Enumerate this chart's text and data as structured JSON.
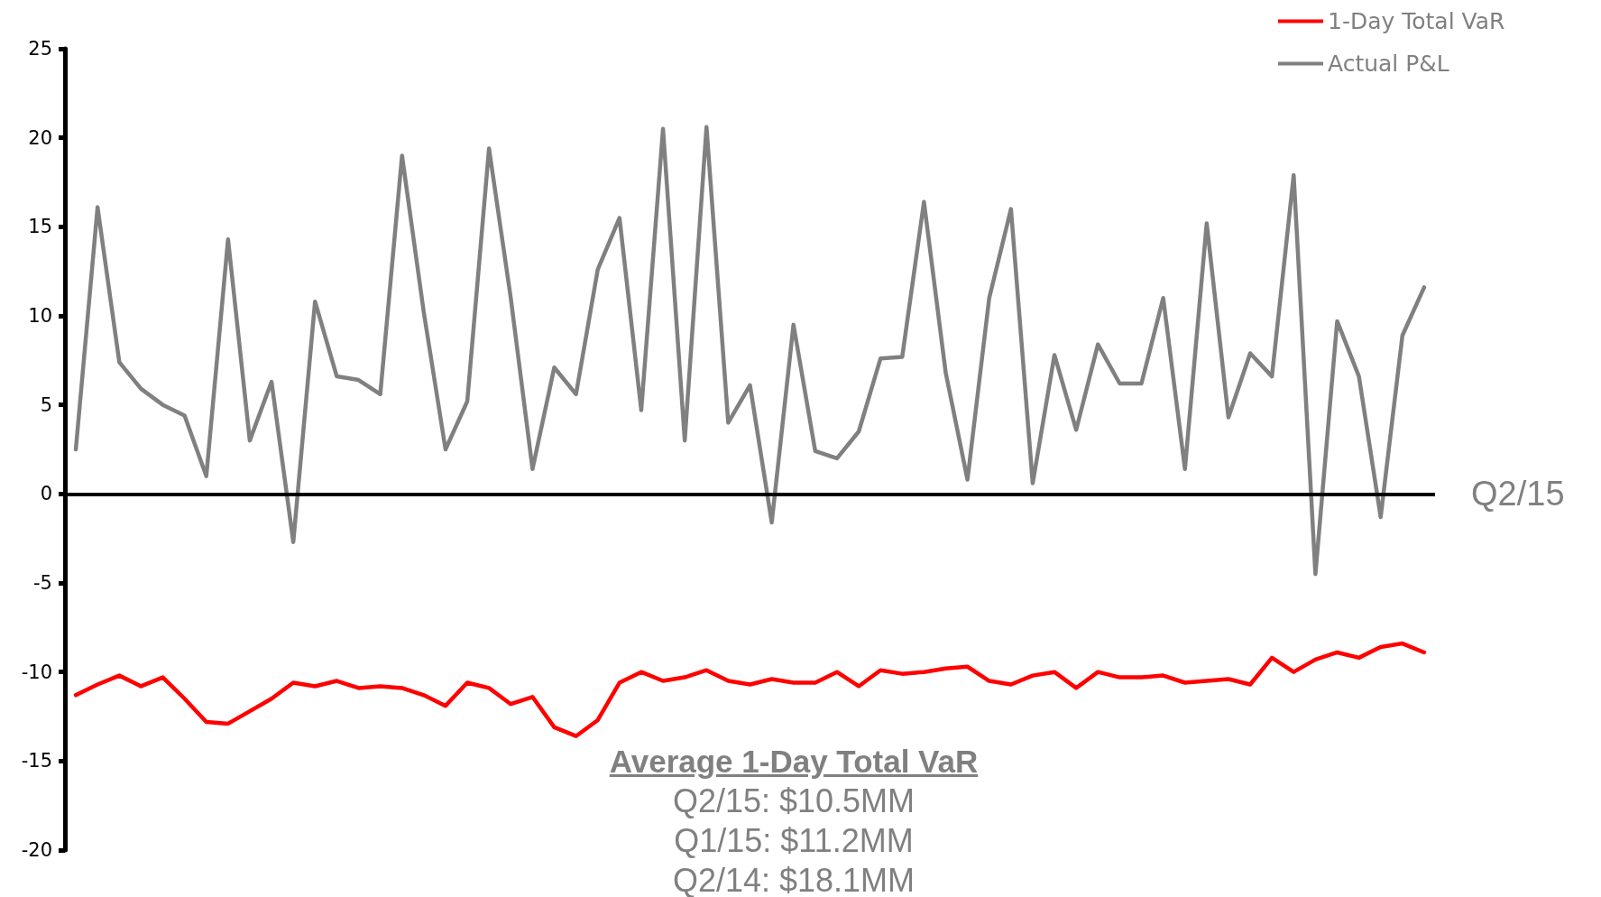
{
  "chart_data": {
    "type": "line",
    "categories": [
      null,
      null,
      null,
      null,
      null,
      null,
      null,
      null,
      null,
      null,
      null,
      null,
      null,
      null,
      null,
      null,
      null,
      null,
      null,
      null,
      null,
      null,
      null,
      null,
      null,
      null,
      null,
      null,
      null,
      null,
      null,
      null,
      null,
      null,
      null,
      null,
      null,
      null,
      null,
      null,
      null,
      null,
      null,
      null,
      null,
      null,
      null,
      null,
      null,
      null,
      null,
      null,
      null,
      null,
      null,
      null,
      null,
      null,
      null,
      null,
      null,
      null,
      null
    ],
    "series": [
      {
        "name": "1-Day Total VaR",
        "color": "#ff0000",
        "values": [
          -11.3,
          -10.7,
          -10.2,
          -10.8,
          -10.3,
          -11.5,
          -12.8,
          -12.9,
          -12.2,
          -11.5,
          -10.6,
          -10.8,
          -10.5,
          -10.9,
          -10.8,
          -10.9,
          -11.3,
          -11.9,
          -10.6,
          -10.9,
          -11.8,
          -11.4,
          -13.1,
          -13.6,
          -12.7,
          -10.6,
          -10.0,
          -10.5,
          -10.3,
          -9.9,
          -10.5,
          -10.7,
          -10.4,
          -10.6,
          -10.6,
          -10.0,
          -10.8,
          -9.9,
          -10.1,
          -10.0,
          -9.8,
          -9.7,
          -10.5,
          -10.7,
          -10.2,
          -10.0,
          -10.9,
          -10.0,
          -10.3,
          -10.3,
          -10.2,
          -10.6,
          -10.5,
          -10.4,
          -10.7,
          -9.2,
          -10.0,
          -9.3,
          -8.9,
          -9.2,
          -8.6,
          -8.4,
          -8.9
        ]
      },
      {
        "name": "Actual P&L",
        "color": "#808080",
        "values": [
          2.5,
          16.1,
          7.4,
          5.9,
          5.0,
          4.4,
          1.0,
          14.3,
          3.0,
          6.3,
          -2.7,
          10.8,
          6.6,
          6.4,
          5.6,
          19.0,
          10.2,
          2.5,
          5.2,
          19.4,
          11.0,
          1.4,
          7.1,
          5.6,
          12.6,
          15.5,
          4.7,
          20.5,
          3.0,
          20.6,
          4.0,
          6.1,
          -1.6,
          9.5,
          2.4,
          2.0,
          3.5,
          7.6,
          7.7,
          16.4,
          6.8,
          0.8,
          11.0,
          16.0,
          0.6,
          7.8,
          3.6,
          8.4,
          6.2,
          6.2,
          11.0,
          1.4,
          15.2,
          4.3,
          7.9,
          6.6,
          17.9,
          -4.5,
          9.7,
          6.6,
          -1.3,
          8.9,
          11.6
        ]
      }
    ],
    "ylim": [
      -20,
      25
    ],
    "yticks": [
      -20,
      -15,
      -10,
      -5,
      0,
      5,
      10,
      15,
      20,
      25
    ],
    "grid": false,
    "legend": "top right",
    "marker": "none",
    "line_style": "solid",
    "tick_labels": "y",
    "ref_lines": [
      {
        "axis": "y",
        "value": 0,
        "label": "Q2/15",
        "color": "#000000"
      }
    ],
    "annotations": [
      "Average 1-Day Total VaR",
      "Q2/15: $10.5MM",
      "Q1/15: $11.2MM",
      "Q2/14: $18.1MM"
    ]
  }
}
